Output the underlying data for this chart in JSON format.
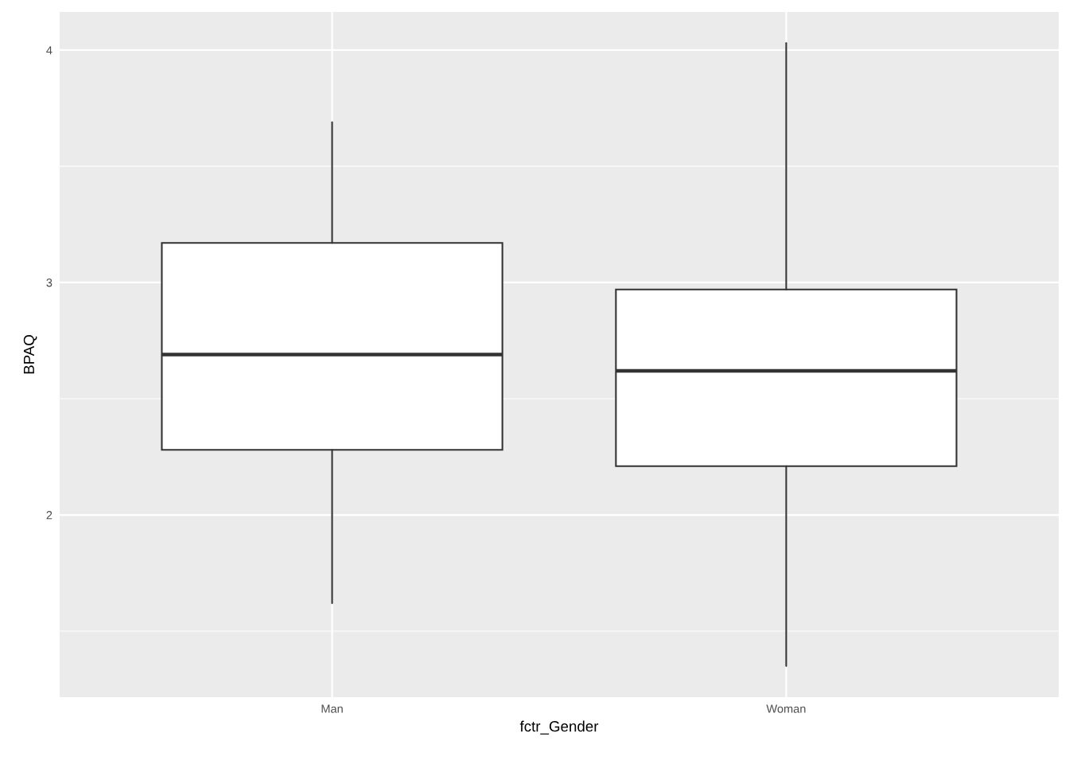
{
  "chart_data": {
    "type": "box",
    "xlabel": "fctr_Gender",
    "ylabel": "BPAQ",
    "categories": [
      "Man",
      "Woman"
    ],
    "boxes": [
      {
        "low": 1.62,
        "q1": 2.28,
        "median": 2.69,
        "q3": 3.17,
        "high": 3.69
      },
      {
        "low": 1.35,
        "q1": 2.21,
        "median": 2.62,
        "q3": 2.97,
        "high": 4.03
      }
    ],
    "ylim": [
      1.216,
      4.164
    ],
    "yticks": [
      2,
      3,
      4
    ],
    "grid": true
  }
}
